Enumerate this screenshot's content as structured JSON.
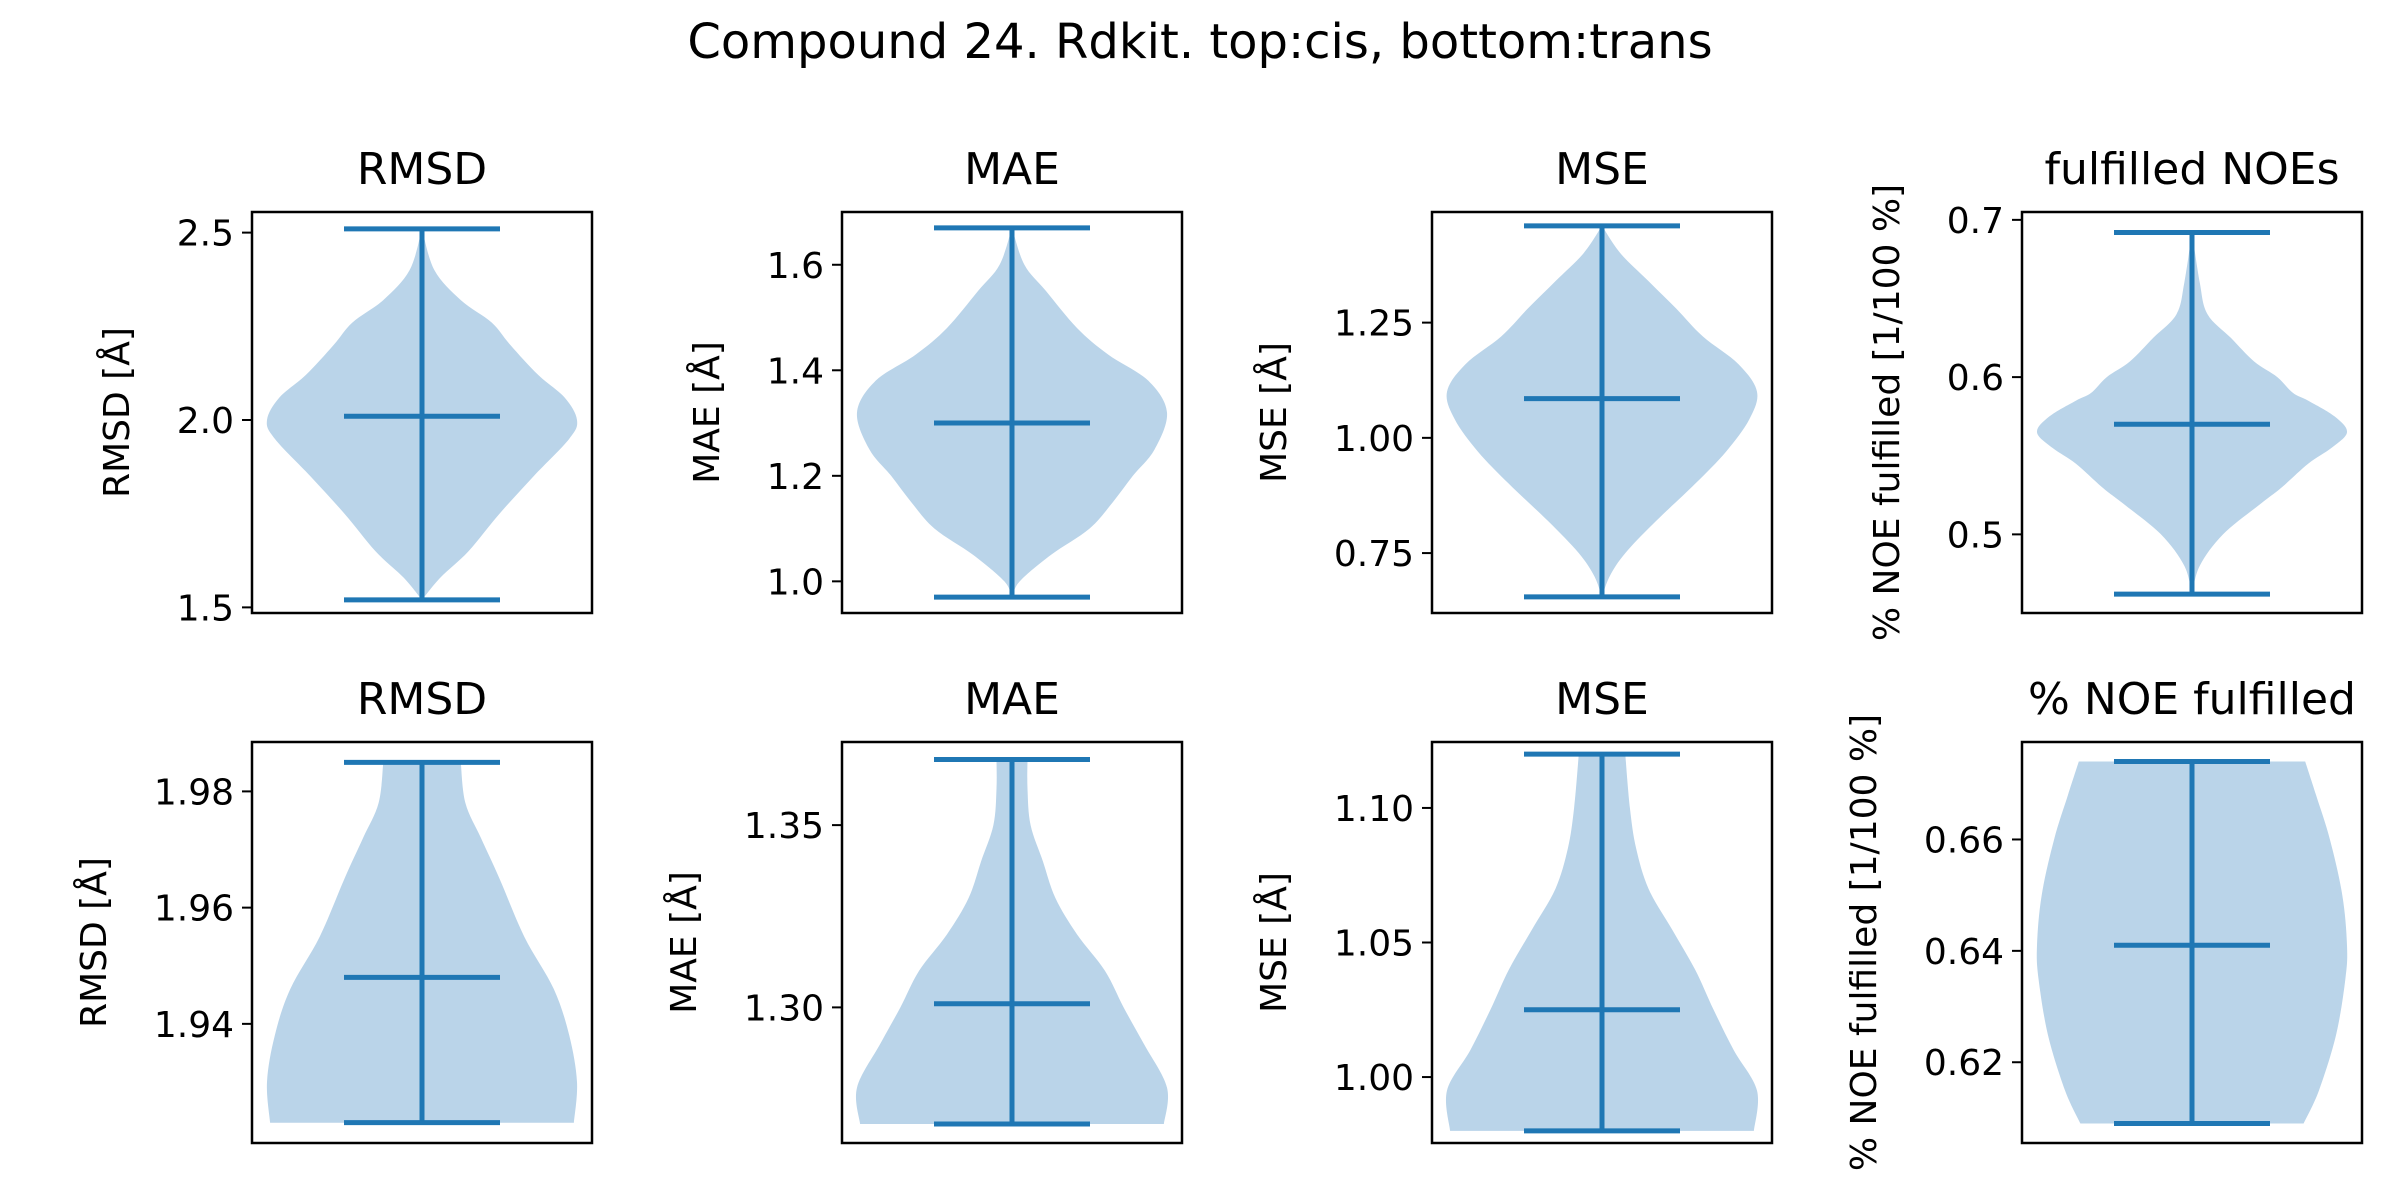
{
  "title": "Compound 24. Rdkit. top:cis, bottom:trans",
  "colors": {
    "body": "#bad4e9",
    "line": "#1f77b4"
  },
  "chart_data": [
    {
      "type": "violin",
      "row": "top",
      "title": "RMSD",
      "ylabel": "RMSD [Å]",
      "ylim": [
        1.485,
        2.555
      ],
      "yticks": [
        1.5,
        2.0,
        2.5
      ],
      "tick_labels": [
        "1.5",
        "2.0",
        "2.5"
      ],
      "min": 1.52,
      "max": 2.51,
      "mean": 2.01,
      "kde": [
        [
          1.52,
          0.0
        ],
        [
          1.58,
          0.12
        ],
        [
          1.65,
          0.3
        ],
        [
          1.75,
          0.5
        ],
        [
          1.85,
          0.72
        ],
        [
          1.95,
          0.95
        ],
        [
          2.0,
          1.0
        ],
        [
          2.06,
          0.92
        ],
        [
          2.12,
          0.75
        ],
        [
          2.2,
          0.57
        ],
        [
          2.26,
          0.45
        ],
        [
          2.32,
          0.25
        ],
        [
          2.4,
          0.08
        ],
        [
          2.51,
          0.0
        ]
      ]
    },
    {
      "type": "violin",
      "row": "top",
      "title": "MAE",
      "ylabel": "MAE [Å]",
      "ylim": [
        0.94,
        1.7
      ],
      "yticks": [
        1.0,
        1.2,
        1.4,
        1.6
      ],
      "tick_labels": [
        "1.0",
        "1.2",
        "1.4",
        "1.6"
      ],
      "min": 0.97,
      "max": 1.67,
      "mean": 1.3,
      "kde": [
        [
          0.97,
          0.0
        ],
        [
          1.0,
          0.05
        ],
        [
          1.05,
          0.25
        ],
        [
          1.1,
          0.5
        ],
        [
          1.15,
          0.65
        ],
        [
          1.2,
          0.78
        ],
        [
          1.25,
          0.92
        ],
        [
          1.32,
          1.0
        ],
        [
          1.38,
          0.88
        ],
        [
          1.43,
          0.62
        ],
        [
          1.48,
          0.42
        ],
        [
          1.55,
          0.22
        ],
        [
          1.6,
          0.08
        ],
        [
          1.67,
          0.0
        ]
      ]
    },
    {
      "type": "violin",
      "row": "top",
      "title": "MSE",
      "ylabel": "MSE [Å]",
      "ylim": [
        0.62,
        1.49
      ],
      "yticks": [
        0.75,
        1.0,
        1.25
      ],
      "tick_labels": [
        "0.75",
        "1.00",
        "1.25"
      ],
      "min": 0.655,
      "max": 1.46,
      "mean": 1.085,
      "kde": [
        [
          0.655,
          0.0
        ],
        [
          0.7,
          0.05
        ],
        [
          0.75,
          0.15
        ],
        [
          0.82,
          0.35
        ],
        [
          0.9,
          0.6
        ],
        [
          0.97,
          0.8
        ],
        [
          1.04,
          0.95
        ],
        [
          1.1,
          1.0
        ],
        [
          1.16,
          0.88
        ],
        [
          1.22,
          0.65
        ],
        [
          1.28,
          0.48
        ],
        [
          1.34,
          0.3
        ],
        [
          1.4,
          0.12
        ],
        [
          1.46,
          0.0
        ]
      ]
    },
    {
      "type": "violin",
      "row": "top",
      "title": "fulfilled NOEs",
      "ylabel": "% NOE fulfilled [1/100 %]",
      "ylim": [
        0.45,
        0.705
      ],
      "yticks": [
        0.5,
        0.6,
        0.7
      ],
      "tick_labels": [
        "0.5",
        "0.6",
        "0.7"
      ],
      "min": 0.462,
      "max": 0.692,
      "mean": 0.57,
      "kde": [
        [
          0.462,
          0.0
        ],
        [
          0.48,
          0.05
        ],
        [
          0.5,
          0.2
        ],
        [
          0.52,
          0.45
        ],
        [
          0.53,
          0.58
        ],
        [
          0.545,
          0.75
        ],
        [
          0.555,
          0.9
        ],
        [
          0.565,
          1.0
        ],
        [
          0.575,
          0.92
        ],
        [
          0.585,
          0.75
        ],
        [
          0.59,
          0.65
        ],
        [
          0.6,
          0.55
        ],
        [
          0.61,
          0.4
        ],
        [
          0.625,
          0.25
        ],
        [
          0.64,
          0.1
        ],
        [
          0.66,
          0.05
        ],
        [
          0.692,
          0.0
        ]
      ]
    },
    {
      "type": "violin",
      "row": "bottom",
      "title": "RMSD",
      "ylabel": "RMSD [Å]",
      "ylim": [
        1.9195,
        1.9885
      ],
      "yticks": [
        1.94,
        1.96,
        1.98
      ],
      "tick_labels": [
        "1.94",
        "1.96",
        "1.98"
      ],
      "min": 1.923,
      "max": 1.985,
      "mean": 1.948,
      "kde": [
        [
          1.923,
          0.98
        ],
        [
          1.93,
          1.0
        ],
        [
          1.938,
          0.95
        ],
        [
          1.946,
          0.85
        ],
        [
          1.955,
          0.66
        ],
        [
          1.965,
          0.5
        ],
        [
          1.972,
          0.38
        ],
        [
          1.978,
          0.28
        ],
        [
          1.985,
          0.25
        ]
      ]
    },
    {
      "type": "violin",
      "row": "bottom",
      "title": "MAE",
      "ylabel": "MAE [Å]",
      "ylim": [
        1.2628,
        1.3728
      ],
      "yticks": [
        1.3,
        1.35
      ],
      "tick_labels": [
        "1.30",
        "1.35"
      ],
      "min": 1.268,
      "max": 1.368,
      "mean": 1.301,
      "kde": [
        [
          1.268,
          0.98
        ],
        [
          1.278,
          1.0
        ],
        [
          1.29,
          0.85
        ],
        [
          1.3,
          0.72
        ],
        [
          1.31,
          0.6
        ],
        [
          1.32,
          0.42
        ],
        [
          1.33,
          0.28
        ],
        [
          1.34,
          0.2
        ],
        [
          1.35,
          0.12
        ],
        [
          1.36,
          0.1
        ],
        [
          1.368,
          0.1
        ]
      ]
    },
    {
      "type": "violin",
      "row": "bottom",
      "title": "MSE",
      "ylabel": "MSE [Å]",
      "ylim": [
        0.9755,
        1.1245
      ],
      "yticks": [
        1.0,
        1.05,
        1.1
      ],
      "tick_labels": [
        "1.00",
        "1.05",
        "1.10"
      ],
      "min": 0.98,
      "max": 1.12,
      "mean": 1.025,
      "kde": [
        [
          0.98,
          0.98
        ],
        [
          0.995,
          1.0
        ],
        [
          1.01,
          0.85
        ],
        [
          1.025,
          0.72
        ],
        [
          1.04,
          0.6
        ],
        [
          1.055,
          0.45
        ],
        [
          1.07,
          0.3
        ],
        [
          1.085,
          0.22
        ],
        [
          1.1,
          0.18
        ],
        [
          1.12,
          0.15
        ]
      ]
    },
    {
      "type": "violin",
      "row": "bottom",
      "title": "% NOE fulfilled",
      "ylabel": "% NOE fulfilled [1/100 %]",
      "ylim": [
        0.6055,
        0.6775
      ],
      "yticks": [
        0.62,
        0.64,
        0.66
      ],
      "tick_labels": [
        "0.62",
        "0.64",
        "0.66"
      ],
      "min": 0.609,
      "max": 0.674,
      "mean": 0.641,
      "kde": [
        [
          0.609,
          0.72
        ],
        [
          0.615,
          0.82
        ],
        [
          0.625,
          0.93
        ],
        [
          0.635,
          0.99
        ],
        [
          0.641,
          1.0
        ],
        [
          0.65,
          0.97
        ],
        [
          0.66,
          0.89
        ],
        [
          0.668,
          0.8
        ],
        [
          0.674,
          0.73
        ]
      ]
    }
  ]
}
